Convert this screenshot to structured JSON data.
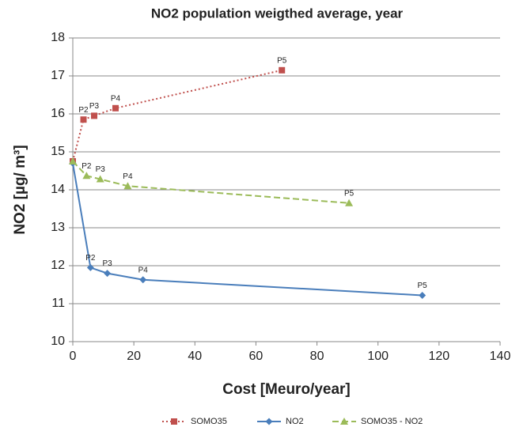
{
  "chart_data": {
    "type": "line",
    "title": "NO2 population weigthed average, year",
    "x_label": "Cost [Meuro/year]",
    "y_label": "NO2 [µg/ m³]",
    "xlim": [
      0,
      140
    ],
    "xticks": [
      0,
      20,
      40,
      60,
      80,
      100,
      120,
      140
    ],
    "ylim": [
      10,
      18
    ],
    "yticks": [
      10,
      11,
      12,
      13,
      14,
      15,
      16,
      17,
      18
    ],
    "grid": true,
    "legend": "bottom",
    "series": [
      {
        "name": "SOMO35",
        "color": "#c0504d",
        "line_style": "dotted",
        "marker": "square",
        "x": [
          0,
          3.5,
          7,
          14,
          68.5
        ],
        "values": [
          14.75,
          15.85,
          15.95,
          16.15,
          17.15
        ],
        "labels": [
          null,
          "P2",
          "P3",
          "P4",
          "P5"
        ]
      },
      {
        "name": "NO2",
        "color": "#4a7ebb",
        "line_style": "solid",
        "marker": "diamond",
        "x": [
          0,
          5.8,
          11.3,
          23,
          114.5
        ],
        "values": [
          14.7,
          11.95,
          11.8,
          11.63,
          11.22
        ],
        "labels": [
          null,
          "P2",
          "P3",
          "P4",
          "P5"
        ]
      },
      {
        "name": "SOMO35 - NO2",
        "color": "#9bbb59",
        "line_style": "dashed",
        "marker": "triangle",
        "x": [
          0,
          4.5,
          9,
          18,
          90.5
        ],
        "values": [
          14.75,
          14.37,
          14.28,
          14.1,
          13.65
        ],
        "labels": [
          null,
          "P2",
          "P3",
          "P4",
          "P5"
        ]
      }
    ]
  }
}
